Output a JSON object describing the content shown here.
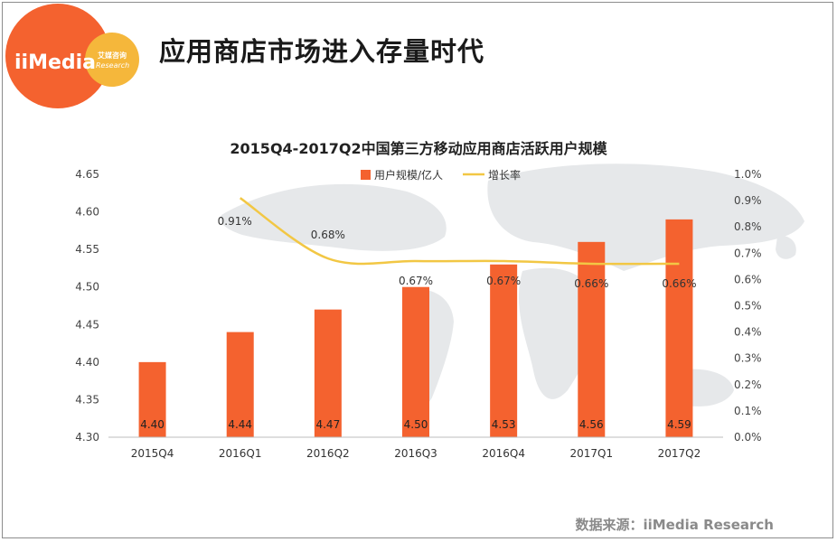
{
  "header": {
    "logo_text": "iiMedia",
    "logo_badge_top": "艾媒咨询",
    "logo_badge_bottom": "Research",
    "title": "应用商店市场进入存量时代"
  },
  "colors": {
    "bar": "#f4622f",
    "line": "#f2c744",
    "logo_circle": "#f4622f",
    "logo_badge": "#f5b73b",
    "map": "#e6e8ea"
  },
  "footer": {
    "source": "数据来源：iiMedia Research"
  },
  "chart_data": {
    "type": "bar",
    "title": "2015Q4-2017Q2中国第三方移动应用商店活跃用户规模",
    "categories": [
      "2015Q4",
      "2016Q1",
      "2016Q2",
      "2016Q3",
      "2016Q4",
      "2017Q1",
      "2017Q2"
    ],
    "series": [
      {
        "name": "用户规模/亿人",
        "type": "bar",
        "axis": "left",
        "values": [
          4.4,
          4.44,
          4.47,
          4.5,
          4.53,
          4.56,
          4.59
        ],
        "labels": [
          "4.40",
          "4.44",
          "4.47",
          "4.50",
          "4.53",
          "4.56",
          "4.59"
        ]
      },
      {
        "name": "增长率",
        "type": "line",
        "axis": "right",
        "values": [
          null,
          0.91,
          0.68,
          0.67,
          0.67,
          0.66,
          0.66
        ],
        "labels": [
          "",
          "0.91%",
          "0.68%",
          "0.67%",
          "0.67%",
          "0.66%",
          "0.66%"
        ]
      }
    ],
    "ylim": [
      4.3,
      4.65
    ],
    "yticks": [
      "4.30",
      "4.35",
      "4.40",
      "4.45",
      "4.50",
      "4.55",
      "4.60",
      "4.65"
    ],
    "y2lim": [
      0.0,
      1.0
    ],
    "y2ticks": [
      "0.0%",
      "0.1%",
      "0.2%",
      "0.3%",
      "0.4%",
      "0.5%",
      "0.6%",
      "0.7%",
      "0.8%",
      "0.9%",
      "1.0%"
    ],
    "legend": "top-center",
    "grid": false
  }
}
